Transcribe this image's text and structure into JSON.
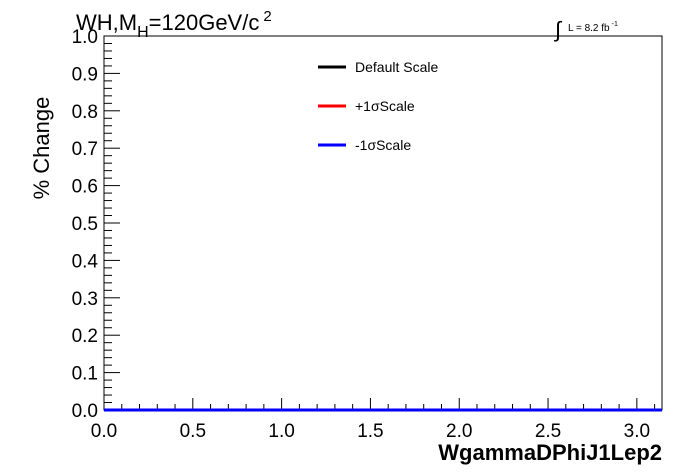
{
  "chart_data": {
    "type": "line",
    "title_main": "WH,M",
    "title_sub": "H",
    "title_rest": "=120GeV/c",
    "title_sup": "2",
    "lumi_integral": "∫",
    "lumi_text": "L = 8.2 fb",
    "lumi_sup": "-1",
    "xlabel": "WgammaDPhiJ1Lep2",
    "ylabel": "% Change",
    "xlim": [
      0,
      3.14159
    ],
    "ylim": [
      0,
      1.0
    ],
    "x_ticks": [
      "0.0",
      "0.5",
      "1.0",
      "1.5",
      "2.0",
      "2.5",
      "3.0"
    ],
    "y_ticks": [
      "0.0",
      "0.1",
      "0.2",
      "0.3",
      "0.4",
      "0.5",
      "0.6",
      "0.7",
      "0.8",
      "0.9",
      "1.0"
    ],
    "legend_position": "top-center",
    "series": [
      {
        "name": "Default Scale",
        "color": "#000000",
        "x": [
          0,
          3.14159
        ],
        "y": [
          0,
          0
        ]
      },
      {
        "name": "+1σScale",
        "color": "#ff0000",
        "x": [
          0,
          3.14159
        ],
        "y": [
          0,
          0
        ]
      },
      {
        "name": "-1σScale",
        "color": "#0000ff",
        "x": [
          0,
          3.14159
        ],
        "y": [
          0,
          0
        ]
      }
    ]
  }
}
